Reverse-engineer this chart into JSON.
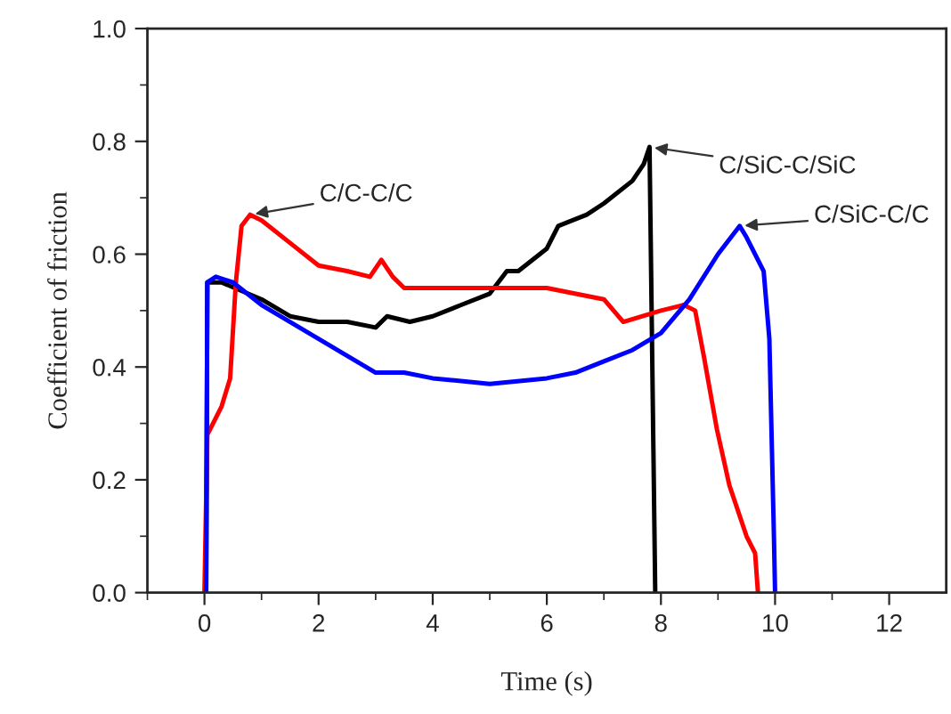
{
  "chart_data": {
    "type": "line",
    "xlabel": "Time (s)",
    "ylabel": "Coefficient of friction",
    "xlim": [
      -1,
      13
    ],
    "ylim": [
      0,
      1.0
    ],
    "xticks": [
      0,
      2,
      4,
      6,
      8,
      10,
      12
    ],
    "yticks": [
      {
        "value": 0,
        "label": "0.0"
      },
      {
        "value": 0.2,
        "label": "0.2"
      },
      {
        "value": 0.4,
        "label": "0.4"
      },
      {
        "value": 0.6,
        "label": "0.6"
      },
      {
        "value": 0.8,
        "label": "0.8"
      },
      {
        "value": 1.0,
        "label": "1.0"
      }
    ],
    "grid": false,
    "legend": false,
    "marker": "none",
    "line_style": "solid",
    "series": [
      {
        "name": "C/SiC-C/SiC",
        "color": "#000000",
        "x": [
          0.03,
          0.05,
          0.3,
          1.0,
          1.5,
          2.0,
          2.5,
          3.0,
          3.2,
          3.6,
          4.0,
          4.5,
          5.0,
          5.3,
          5.5,
          6.0,
          6.2,
          6.7,
          7.0,
          7.5,
          7.7,
          7.8,
          7.9
        ],
        "values": [
          0.0,
          0.55,
          0.55,
          0.52,
          0.49,
          0.48,
          0.48,
          0.47,
          0.49,
          0.48,
          0.49,
          0.51,
          0.53,
          0.57,
          0.57,
          0.61,
          0.65,
          0.67,
          0.69,
          0.73,
          0.76,
          0.79,
          0.0
        ]
      },
      {
        "name": "C/C-C/C",
        "color": "#ff0000",
        "x": [
          0.0,
          0.05,
          0.3,
          0.45,
          0.55,
          0.65,
          0.8,
          1.0,
          1.5,
          2.0,
          2.5,
          2.9,
          3.1,
          3.3,
          3.5,
          4.0,
          5.0,
          6.0,
          7.0,
          7.34,
          8.0,
          8.4,
          8.6,
          8.75,
          8.98,
          9.2,
          9.5,
          9.65,
          9.7
        ],
        "values": [
          0.0,
          0.28,
          0.33,
          0.38,
          0.55,
          0.65,
          0.67,
          0.66,
          0.62,
          0.58,
          0.57,
          0.56,
          0.59,
          0.56,
          0.54,
          0.54,
          0.54,
          0.54,
          0.52,
          0.48,
          0.5,
          0.51,
          0.5,
          0.42,
          0.29,
          0.19,
          0.1,
          0.07,
          0.0
        ]
      },
      {
        "name": "C/SiC-C/C",
        "color": "#0000ff",
        "x": [
          0.03,
          0.05,
          0.2,
          0.5,
          1.0,
          1.5,
          2.0,
          2.5,
          3.0,
          3.5,
          4.0,
          5.0,
          6.0,
          6.5,
          7.0,
          7.5,
          8.0,
          8.5,
          9.0,
          9.38,
          9.5,
          9.8,
          9.9,
          9.98,
          10.0
        ],
        "values": [
          0.0,
          0.55,
          0.56,
          0.55,
          0.51,
          0.48,
          0.45,
          0.42,
          0.39,
          0.39,
          0.38,
          0.37,
          0.38,
          0.39,
          0.41,
          0.43,
          0.46,
          0.52,
          0.6,
          0.65,
          0.63,
          0.57,
          0.45,
          0.1,
          0.0
        ]
      }
    ]
  }
}
